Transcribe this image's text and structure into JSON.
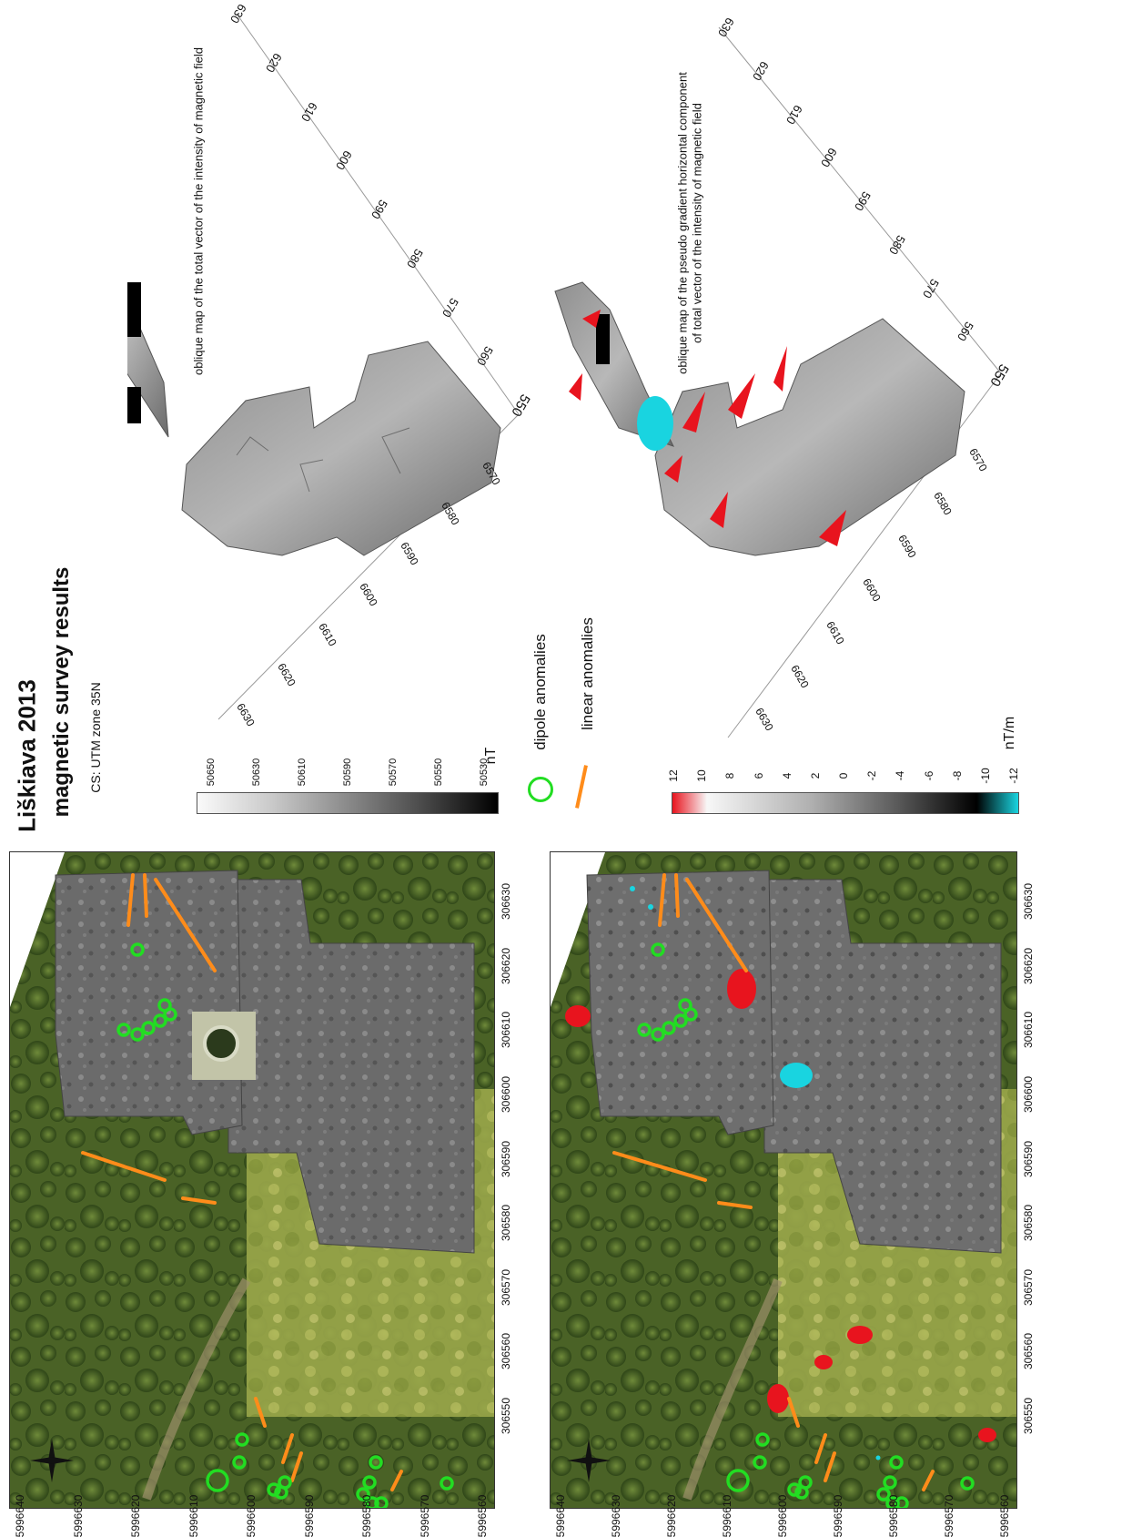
{
  "title": "Liškiava 2013",
  "subtitle": "magnetic survey results",
  "cs": "CS: UTM zone 35N",
  "compass": {
    "n": "N",
    "e": "E",
    "s": "S",
    "w": "W"
  },
  "legend": {
    "dipole": "dipole anomalies",
    "linear": "linear anomalies",
    "colors": {
      "dipole": "#22dd22",
      "linear": "#ff8c1a",
      "red": "#e8141e",
      "cyan": "#19d4e0"
    }
  },
  "scale_nt": {
    "unit": "nT",
    "ticks": [
      "50650",
      "50630",
      "50610",
      "50590",
      "50570",
      "50550",
      "50530"
    ]
  },
  "scale_ntm": {
    "unit": "nT/m",
    "ticks": [
      "12",
      "10",
      "8",
      "6",
      "4",
      "2",
      "0",
      "-2",
      "-4",
      "-6",
      "-8",
      "-10",
      "-12"
    ]
  },
  "map_axes": {
    "y_ticks": [
      "5996640",
      "5996630",
      "5996620",
      "5996610",
      "5996600",
      "5996590",
      "5996580",
      "5996570",
      "5996560"
    ],
    "x_ticks": [
      "306550",
      "306560",
      "306570",
      "306580",
      "306590",
      "306600",
      "306610",
      "306620",
      "306630"
    ]
  },
  "oblique_top": {
    "caption": "oblique map of the total vector of the intensity of magnetic field",
    "axis_a": [
      "550",
      "560",
      "570",
      "580",
      "590",
      "600",
      "610",
      "620",
      "630"
    ],
    "axis_b": [
      "6570",
      "6580",
      "6590",
      "6600",
      "6610",
      "6620",
      "6630"
    ]
  },
  "oblique_bottom": {
    "caption_line1": "oblique map of the pseudo gradient horizontal component",
    "caption_line2": "of total vector of the intensity of magnetic field",
    "axis_a": [
      "550",
      "560",
      "570",
      "580",
      "590",
      "600",
      "610",
      "620",
      "630"
    ],
    "axis_b": [
      "6570",
      "6580",
      "6590",
      "6600",
      "6610",
      "6620",
      "6630"
    ]
  }
}
